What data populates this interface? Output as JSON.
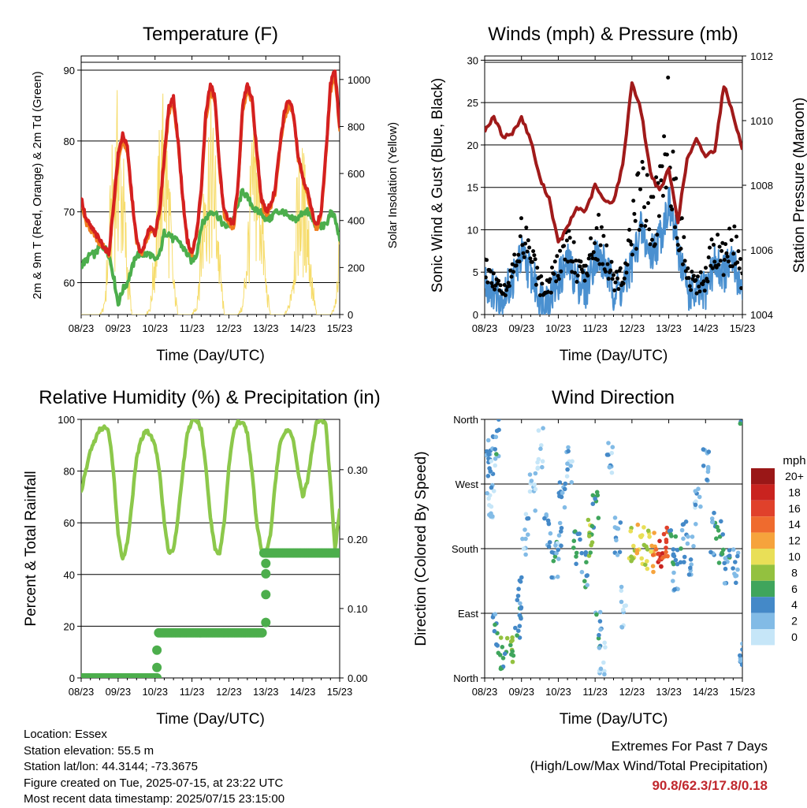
{
  "x_ticks": [
    "08/23",
    "09/23",
    "10/23",
    "11/23",
    "12/23",
    "13/23",
    "14/23",
    "15/23"
  ],
  "colors": {
    "temp_2m": "#d42020",
    "temp_9m": "#f07d1e",
    "dewpoint": "#4cae4c",
    "solar": "#f6dc6b",
    "wind": "#4a90d0",
    "gust": "#000000",
    "pressure": "#a01a1a",
    "rh": "#8cc84b",
    "precip": "#4cae4c"
  },
  "colorbar": {
    "title": "mph",
    "labels": [
      "20+",
      "18",
      "16",
      "14",
      "12",
      "10",
      "8",
      "6",
      "4",
      "2",
      "0"
    ],
    "colors": [
      "#9a1717",
      "#c9231f",
      "#e0412b",
      "#ef6b2e",
      "#f6a33c",
      "#e9df57",
      "#93c13f",
      "#3fa55c",
      "#4489c8",
      "#82bbe6",
      "#c6e6f8"
    ]
  },
  "chart_data": [
    {
      "id": "temperature",
      "type": "line",
      "title": "Temperature (F)",
      "xlabel": "Time (Day/UTC)",
      "ylabel": "2m & 9m T (Red, Orange) & 2m Td (Green)",
      "ylabel_right": "Solar Insolation (Yellow)",
      "ylim": [
        55.5,
        92
      ],
      "ylim_right": [
        0,
        1100
      ],
      "yticks": [
        60,
        70,
        80,
        90
      ],
      "yticks_right": [
        0,
        200,
        400,
        600,
        800,
        1000
      ],
      "x": [
        0,
        0.125,
        0.25,
        0.375,
        0.5,
        0.625,
        0.75,
        0.875,
        1,
        1.125,
        1.25,
        1.375,
        1.5,
        1.625,
        1.75,
        1.875,
        2,
        2.125,
        2.25,
        2.375,
        2.5,
        2.625,
        2.75,
        2.875,
        3,
        3.125,
        3.25,
        3.375,
        3.5,
        3.625,
        3.75,
        3.875,
        4,
        4.125,
        4.25,
        4.375,
        4.5,
        4.625,
        4.75,
        4.875,
        5,
        5.125,
        5.25,
        5.375,
        5.5,
        5.625,
        5.75,
        5.875,
        6,
        6.125,
        6.25,
        6.375,
        6.5,
        6.625,
        6.75,
        6.875,
        7
      ],
      "series": [
        {
          "name": "2m T",
          "values": [
            72,
            69,
            68,
            67,
            66,
            65,
            64,
            71,
            78,
            81,
            79,
            72,
            66,
            64,
            66,
            68,
            67,
            70,
            78,
            85,
            86,
            80,
            72,
            66,
            64,
            67,
            73,
            84,
            88,
            86,
            76,
            70,
            69,
            68,
            74,
            85,
            88,
            86,
            79,
            72,
            70,
            71,
            73,
            79,
            84,
            86,
            84,
            78,
            75,
            73,
            70,
            68,
            70,
            78,
            88,
            90,
            82
          ]
        },
        {
          "name": "9m T",
          "values": [
            71,
            68.5,
            67.5,
            66.5,
            65.5,
            65,
            64,
            70,
            77,
            80,
            78.5,
            71.5,
            65.5,
            64,
            65.5,
            67.5,
            67,
            69.5,
            77,
            84,
            85,
            79.5,
            71.5,
            65.5,
            64,
            66.5,
            72.5,
            83,
            87,
            85.5,
            75.5,
            69.5,
            68.5,
            67.5,
            73.5,
            84,
            87,
            85.5,
            78.5,
            71.5,
            69.5,
            70.5,
            72.5,
            78.5,
            83,
            85,
            83.5,
            77.5,
            74.5,
            72.5,
            69.5,
            67.5,
            69.5,
            77.5,
            87,
            89,
            81.5
          ]
        },
        {
          "name": "2m Td",
          "values": [
            62.5,
            63,
            64,
            64,
            65,
            65,
            64,
            61,
            57,
            59,
            60,
            62,
            64,
            64,
            64,
            64,
            63,
            64,
            67,
            67,
            66,
            66,
            65,
            64,
            63,
            64,
            68,
            69,
            70,
            70,
            69,
            68,
            68,
            69,
            71,
            73,
            72,
            71,
            70,
            70,
            69,
            69,
            70,
            70,
            70,
            69,
            69,
            69,
            70,
            70,
            69,
            68,
            68,
            68,
            70,
            69,
            66
          ]
        },
        {
          "name": "Solar Insolation",
          "values": [
            0,
            0,
            0,
            0,
            0,
            50,
            450,
            850,
            1000,
            800,
            300,
            0,
            0,
            0,
            0,
            50,
            400,
            850,
            1050,
            700,
            200,
            0,
            0,
            0,
            0,
            50,
            450,
            850,
            950,
            800,
            300,
            0,
            0,
            0,
            0,
            50,
            400,
            800,
            850,
            700,
            200,
            0,
            0,
            0,
            0,
            50,
            300,
            700,
            750,
            600,
            200,
            0,
            0,
            0,
            0,
            50,
            400
          ]
        }
      ]
    },
    {
      "id": "winds",
      "type": "line",
      "title": "Winds (mph) & Pressure (mb)",
      "xlabel": "Time (Day/UTC)",
      "ylabel": "Sonic Wind & Gust (Blue, Black)",
      "ylabel_right": "Station Pressure (Maroon)",
      "ylim": [
        0,
        30.5
      ],
      "ylim_right": [
        1004,
        1012
      ],
      "yticks": [
        0,
        5,
        10,
        15,
        20,
        25,
        30
      ],
      "yticks_right": [
        1004,
        1006,
        1008,
        1010,
        1012
      ],
      "x": [
        0,
        0.25,
        0.5,
        0.75,
        1,
        1.25,
        1.5,
        1.75,
        2,
        2.25,
        2.5,
        2.75,
        3,
        3.25,
        3.5,
        3.75,
        4,
        4.25,
        4.5,
        4.75,
        5,
        5.25,
        5.5,
        5.75,
        6,
        6.25,
        6.5,
        6.75,
        7
      ],
      "series": [
        {
          "name": "Wind",
          "values": [
            4,
            3,
            2,
            4,
            7,
            5,
            2,
            2,
            4,
            6,
            4,
            3,
            7,
            6,
            3,
            3,
            6,
            10,
            7,
            9,
            13,
            8,
            3,
            2,
            3,
            6,
            5,
            6,
            3
          ]
        },
        {
          "name": "Gust",
          "values": [
            6,
            5,
            3,
            6,
            10,
            8,
            4,
            4,
            7,
            11,
            7,
            5,
            11,
            9,
            5,
            5,
            11,
            17,
            13,
            15,
            26,
            14,
            5,
            4,
            5,
            10,
            8,
            10,
            5
          ]
        },
        {
          "name": "Station Pressure",
          "values": [
            1009.7,
            1010.1,
            1009.5,
            1009.6,
            1010.1,
            1009.4,
            1008.2,
            1007.6,
            1006.2,
            1006.7,
            1007.3,
            1007.2,
            1008.0,
            1007.5,
            1007.5,
            1008.6,
            1011.2,
            1010.3,
            1008.4,
            1007.8,
            1008.5,
            1006.9,
            1008.8,
            1009.4,
            1008.9,
            1009.1,
            1011.1,
            1010.2,
            1009.1
          ]
        }
      ]
    },
    {
      "id": "humidity",
      "type": "line",
      "title": "Relative Humidity (%) & Precipitation (in)",
      "xlabel": "Time (Day/UTC)",
      "ylabel": "Percent & Total Rainfall",
      "ylim": [
        0,
        100
      ],
      "ylim_right": [
        0,
        0.3725
      ],
      "yticks": [
        0,
        20,
        40,
        60,
        80,
        100
      ],
      "yticks_right": [
        "0.00",
        "0.10",
        "0.20",
        "0.30"
      ],
      "x": [
        0,
        0.125,
        0.25,
        0.375,
        0.5,
        0.625,
        0.75,
        0.875,
        1,
        1.125,
        1.25,
        1.375,
        1.5,
        1.625,
        1.75,
        1.875,
        2,
        2.125,
        2.25,
        2.375,
        2.5,
        2.625,
        2.75,
        2.875,
        3,
        3.125,
        3.25,
        3.375,
        3.5,
        3.625,
        3.75,
        3.875,
        4,
        4.125,
        4.25,
        4.375,
        4.5,
        4.625,
        4.75,
        4.875,
        5,
        5.125,
        5.25,
        5.375,
        5.5,
        5.625,
        5.75,
        5.875,
        6,
        6.125,
        6.25,
        6.375,
        6.5,
        6.625,
        6.75,
        6.875,
        7
      ],
      "series": [
        {
          "name": "RH",
          "values": [
            72,
            80,
            88,
            92,
            96,
            97,
            95,
            80,
            55,
            46,
            52,
            68,
            85,
            92,
            96,
            94,
            90,
            80,
            60,
            48,
            50,
            62,
            80,
            95,
            99,
            100,
            96,
            82,
            62,
            50,
            48,
            60,
            82,
            95,
            99,
            99,
            95,
            80,
            60,
            50,
            48,
            55,
            75,
            90,
            95,
            96,
            92,
            80,
            70,
            76,
            88,
            99,
            100,
            98,
            75,
            50,
            65
          ]
        },
        {
          "name": "Total Precipitation",
          "values": [
            0,
            0,
            0,
            0,
            0,
            0,
            0,
            0,
            0,
            0,
            0,
            0,
            0,
            0,
            0,
            0,
            0,
            0.065,
            0.065,
            0.065,
            0.065,
            0.065,
            0.065,
            0.065,
            0.065,
            0.065,
            0.065,
            0.065,
            0.065,
            0.065,
            0.065,
            0.065,
            0.065,
            0.065,
            0.065,
            0.065,
            0.065,
            0.065,
            0.065,
            0.065,
            0.18,
            0.18,
            0.18,
            0.18,
            0.18,
            0.18,
            0.18,
            0.18,
            0.18,
            0.18,
            0.18,
            0.18,
            0.18,
            0.18,
            0.18,
            0.18,
            0.18
          ]
        }
      ]
    },
    {
      "id": "direction",
      "type": "scatter",
      "title": "Wind Direction",
      "xlabel": "Time (Day/UTC)",
      "ylabel": "Direction (Colored By Speed)",
      "ylim": [
        0,
        360
      ],
      "yticks": [
        0,
        90,
        180,
        270,
        360
      ],
      "yticklabels": [
        "North",
        "East",
        "South",
        "West",
        "North"
      ],
      "points": [
        {
          "x": 0.1,
          "y": 310,
          "speed": 3
        },
        {
          "x": 0.2,
          "y": 290,
          "speed": 2
        },
        {
          "x": 0.3,
          "y": 330,
          "speed": 4
        },
        {
          "x": 0.15,
          "y": 240,
          "speed": 1
        },
        {
          "x": 0.3,
          "y": 60,
          "speed": 4
        },
        {
          "x": 0.5,
          "y": 30,
          "speed": 6
        },
        {
          "x": 0.7,
          "y": 40,
          "speed": 7
        },
        {
          "x": 0.9,
          "y": 80,
          "speed": 4
        },
        {
          "x": 1.0,
          "y": 110,
          "speed": 3
        },
        {
          "x": 1.1,
          "y": 200,
          "speed": 2
        },
        {
          "x": 1.3,
          "y": 260,
          "speed": 2
        },
        {
          "x": 1.5,
          "y": 320,
          "speed": 1
        },
        {
          "x": 1.7,
          "y": 200,
          "speed": 3
        },
        {
          "x": 1.9,
          "y": 160,
          "speed": 4
        },
        {
          "x": 2.0,
          "y": 190,
          "speed": 2
        },
        {
          "x": 2.1,
          "y": 250,
          "speed": 3
        },
        {
          "x": 2.3,
          "y": 300,
          "speed": 2
        },
        {
          "x": 2.5,
          "y": 180,
          "speed": 5
        },
        {
          "x": 2.7,
          "y": 150,
          "speed": 4
        },
        {
          "x": 2.9,
          "y": 200,
          "speed": 8
        },
        {
          "x": 3.0,
          "y": 230,
          "speed": 6
        },
        {
          "x": 3.1,
          "y": 70,
          "speed": 4
        },
        {
          "x": 3.2,
          "y": 30,
          "speed": 1
        },
        {
          "x": 3.4,
          "y": 300,
          "speed": 2
        },
        {
          "x": 3.6,
          "y": 200,
          "speed": 3
        },
        {
          "x": 3.8,
          "y": 100,
          "speed": 1
        },
        {
          "x": 4.0,
          "y": 180,
          "speed": 9
        },
        {
          "x": 4.2,
          "y": 185,
          "speed": 11
        },
        {
          "x": 4.4,
          "y": 180,
          "speed": 8
        },
        {
          "x": 4.6,
          "y": 175,
          "speed": 12
        },
        {
          "x": 4.8,
          "y": 180,
          "speed": 17
        },
        {
          "x": 4.9,
          "y": 185,
          "speed": 15
        },
        {
          "x": 5.1,
          "y": 180,
          "speed": 5
        },
        {
          "x": 5.2,
          "y": 150,
          "speed": 3
        },
        {
          "x": 5.4,
          "y": 190,
          "speed": 4
        },
        {
          "x": 5.6,
          "y": 170,
          "speed": 3
        },
        {
          "x": 5.8,
          "y": 240,
          "speed": 2
        },
        {
          "x": 6.0,
          "y": 300,
          "speed": 3
        },
        {
          "x": 6.2,
          "y": 200,
          "speed": 4
        },
        {
          "x": 6.4,
          "y": 190,
          "speed": 5
        },
        {
          "x": 6.6,
          "y": 150,
          "speed": 4
        },
        {
          "x": 6.8,
          "y": 160,
          "speed": 3
        },
        {
          "x": 6.95,
          "y": 20,
          "speed": 4
        }
      ]
    }
  ],
  "info": {
    "location": "Location: Essex",
    "elevation": "Station elevation: 55.5 m",
    "latlon": "Station lat/lon: 44.3144; -73.3675",
    "created": "Figure created on Tue, 2025-07-15, at 23:22 UTC",
    "latest": "Most recent data timestamp: 2025/07/15 23:15:00"
  },
  "extremes": {
    "title": "Extremes For Past 7 Days",
    "subtitle": "(High/Low/Max Wind/Total Precipitation)",
    "values": "90.8/62.3/17.8/0.18"
  }
}
